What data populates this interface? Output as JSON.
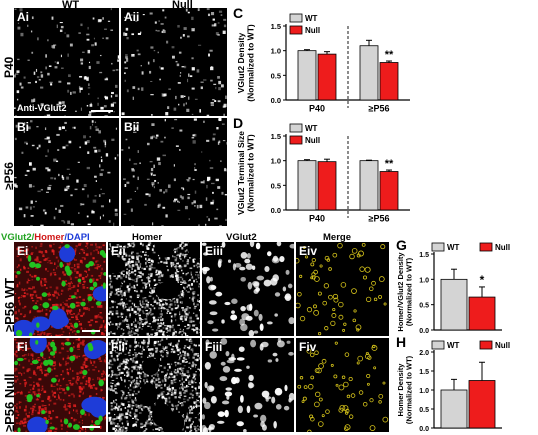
{
  "panels": {
    "col_wt": "WT",
    "col_null": "Null",
    "Ai": "Ai",
    "Aii": "Aii",
    "Bi": "Bi",
    "Bii": "Bii",
    "row_p40": "P40",
    "row_p56": "≥P56",
    "antibody": "Anti-VGlut2",
    "Ei": "Ei",
    "Eii": "Eii",
    "Eiii": "Eiii",
    "Eiv": "Eiv",
    "Fi": "Fi",
    "Fii": "Fii",
    "Fiii": "Fiii",
    "Fiv": "Fiv",
    "stain_vglut2": "VGlut2/",
    "stain_homer": "Homer",
    "stain_dapi": "/DAPI",
    "col_homer": "Homer",
    "col_vglut2": "VGlut2",
    "col_merge": "Merge",
    "row_e": "≥P56 WT",
    "row_f": "≥P56 Null"
  },
  "colors": {
    "wt": "#d4d4d4",
    "null": "#ee1c1c",
    "vglut2": "#22c322",
    "homer": "#e02020",
    "dapi": "#1e3cd8",
    "merge": "#d4c21a"
  },
  "chart_data": [
    {
      "id": "C",
      "letter": "C",
      "type": "bar",
      "ylabel": "VGlut2 Density (Normalized to WT)",
      "groups": [
        "P40",
        "≥P56"
      ],
      "legend": [
        "WT",
        "Null"
      ],
      "series": [
        {
          "name": "WT",
          "values": [
            1.0,
            1.1
          ],
          "err": [
            0.02,
            0.11
          ]
        },
        {
          "name": "Null",
          "values": [
            0.93,
            0.76
          ],
          "err": [
            0.05,
            0.03
          ]
        }
      ],
      "ylim": [
        0,
        1.5
      ],
      "yticks": [
        "0.0",
        "0.5",
        "1.0",
        "1.5"
      ],
      "annotations": [
        {
          "group": 1,
          "series": 1,
          "text": "**"
        }
      ]
    },
    {
      "id": "D",
      "letter": "D",
      "type": "bar",
      "ylabel": "VGlut2 Terminal Size (Normalized to WT)",
      "groups": [
        "P40",
        "≥P56"
      ],
      "legend": [
        "WT",
        "Null"
      ],
      "series": [
        {
          "name": "WT",
          "values": [
            1.0,
            1.0
          ],
          "err": [
            0.02,
            0.01
          ]
        },
        {
          "name": "Null",
          "values": [
            0.98,
            0.78
          ],
          "err": [
            0.05,
            0.03
          ]
        }
      ],
      "ylim": [
        0,
        1.5
      ],
      "yticks": [
        "0.0",
        "0.5",
        "1.0",
        "1.5"
      ],
      "annotations": [
        {
          "group": 1,
          "series": 1,
          "text": "**"
        }
      ]
    },
    {
      "id": "G",
      "letter": "G",
      "type": "bar",
      "ylabel": "Homer/VGlut2 Density (Normalized to WT)",
      "groups": [
        ""
      ],
      "legend": [
        "WT",
        "Null"
      ],
      "series": [
        {
          "name": "WT",
          "values": [
            1.0
          ],
          "err": [
            0.2
          ]
        },
        {
          "name": "Null",
          "values": [
            0.65
          ],
          "err": [
            0.2
          ]
        }
      ],
      "ylim": [
        0,
        1.5
      ],
      "yticks": [
        "0.0",
        "0.5",
        "1.0",
        "1.5"
      ],
      "annotations": [
        {
          "group": 0,
          "series": 1,
          "text": "*"
        }
      ]
    },
    {
      "id": "H",
      "letter": "H",
      "type": "bar",
      "ylabel": "Homer Density (Normalized to WT)",
      "groups": [
        ""
      ],
      "legend": [
        "WT",
        "Null"
      ],
      "series": [
        {
          "name": "WT",
          "values": [
            1.0
          ],
          "err": [
            0.28
          ]
        },
        {
          "name": "Null",
          "values": [
            1.25
          ],
          "err": [
            0.48
          ]
        }
      ],
      "ylim": [
        0,
        2.0
      ],
      "yticks": [
        "0.0",
        "0.5",
        "1.0",
        "1.5",
        "2.0"
      ],
      "annotations": []
    }
  ]
}
